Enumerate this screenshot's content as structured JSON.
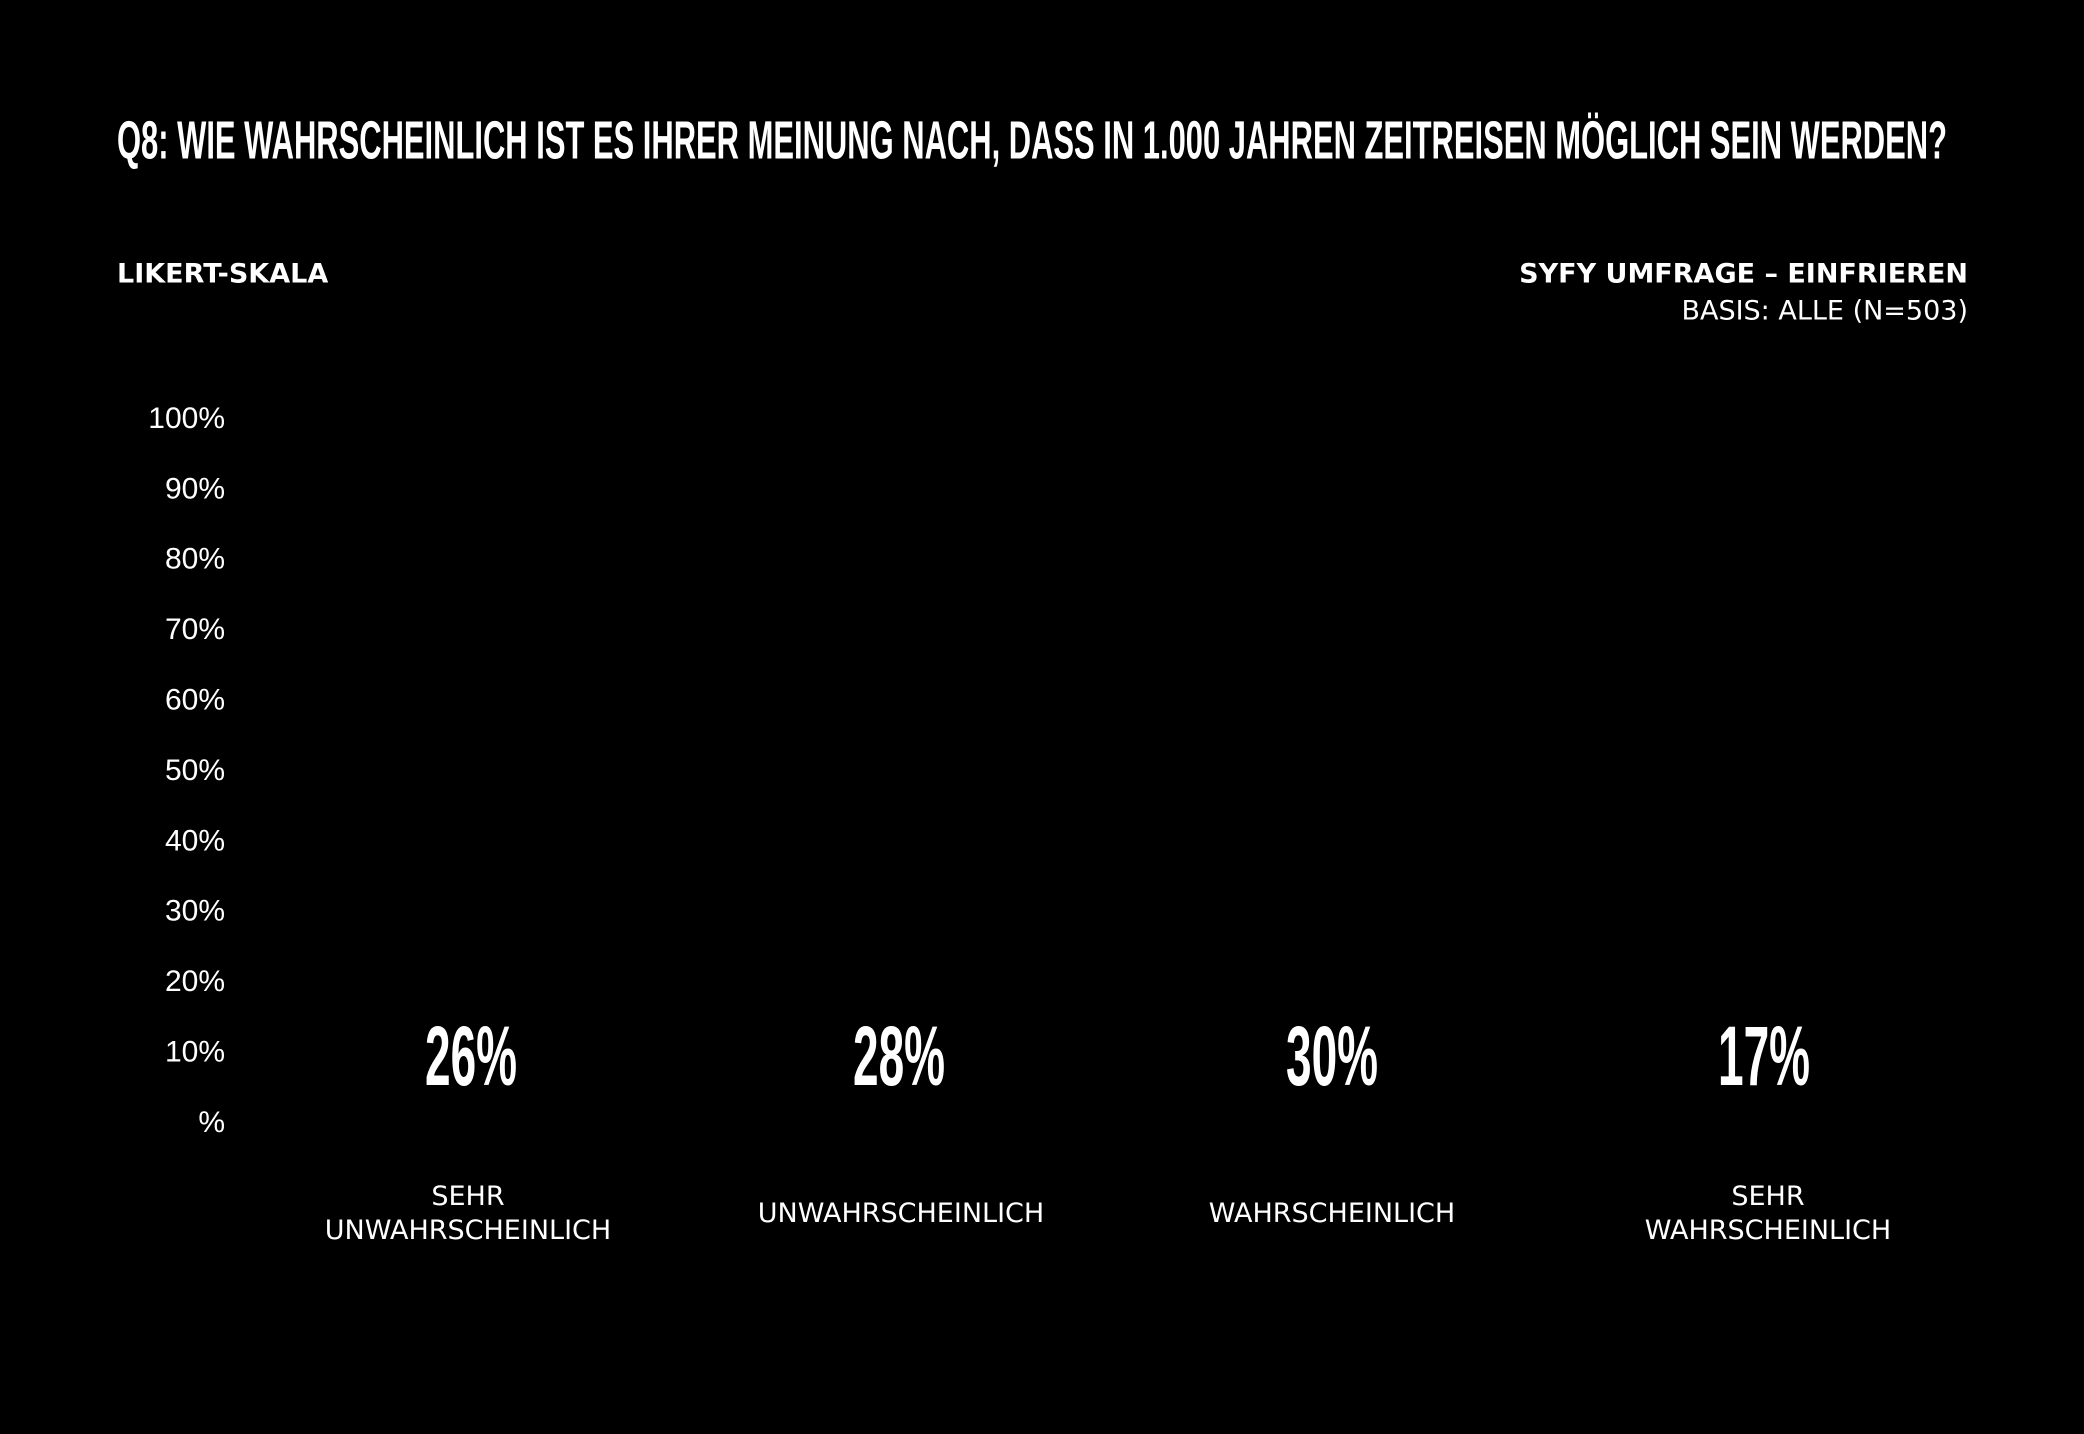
{
  "chart_data": {
    "type": "bar",
    "title": "Q8: WIE WAHRSCHEINLICH IST ES IHRER MEINUNG NACH, DASS IN 1.000 JAHREN ZEITREISEN MÖGLICH SEIN WERDEN?",
    "subtitle": "LIKERT-SKALA",
    "source": "SYFY UMFRAGE – EINFRIEREN",
    "base": "BASIS: ALLE (N=503)",
    "categories": [
      "SEHR\nUNWAHRSCHEINLICH",
      "UNWAHRSCHEINLICH",
      "WAHRSCHEINLICH",
      "SEHR\nWAHRSCHEINLICH"
    ],
    "values": [
      26,
      28,
      30,
      17
    ],
    "value_labels": [
      "26%",
      "28%",
      "30%",
      "17%"
    ],
    "color": "#b4ff48",
    "ylim": [
      0,
      100
    ],
    "yticks": [
      {
        "value": 0,
        "label": "%"
      },
      {
        "value": 10,
        "label": "10%"
      },
      {
        "value": 20,
        "label": "20%"
      },
      {
        "value": 30,
        "label": "30%"
      },
      {
        "value": 40,
        "label": "40%"
      },
      {
        "value": 50,
        "label": "50%"
      },
      {
        "value": 60,
        "label": "60%"
      },
      {
        "value": 70,
        "label": "70%"
      },
      {
        "value": 80,
        "label": "80%"
      },
      {
        "value": 90,
        "label": "90%"
      },
      {
        "value": 100,
        "label": "100%"
      }
    ],
    "grid": false
  }
}
